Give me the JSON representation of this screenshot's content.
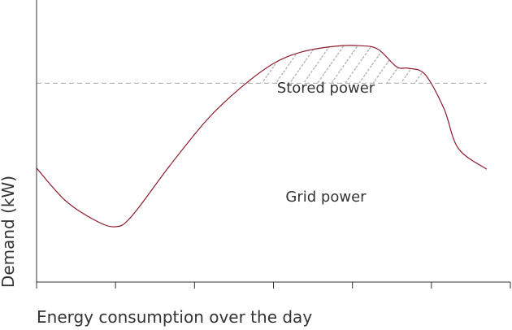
{
  "chart_data": {
    "type": "area",
    "title": "",
    "xlabel": "Energy consumption over the day",
    "ylabel": "Demand (kW)",
    "x_ticks": 6,
    "grid": false,
    "colors": {
      "curve": "#8b1a2b",
      "threshold": "#b5b5b5",
      "hatch": "#b8b8b8",
      "axis": "#333333",
      "text": "#333333"
    },
    "curve_points": [
      {
        "x": 0.0,
        "y": 0.404
      },
      {
        "x": 0.06,
        "y": 0.29
      },
      {
        "x": 0.12,
        "y": 0.222
      },
      {
        "x": 0.165,
        "y": 0.196
      },
      {
        "x": 0.2,
        "y": 0.232
      },
      {
        "x": 0.28,
        "y": 0.41
      },
      {
        "x": 0.36,
        "y": 0.576
      },
      {
        "x": 0.43,
        "y": 0.688
      },
      {
        "x": 0.5,
        "y": 0.775
      },
      {
        "x": 0.56,
        "y": 0.816
      },
      {
        "x": 0.63,
        "y": 0.836
      },
      {
        "x": 0.68,
        "y": 0.838
      },
      {
        "x": 0.72,
        "y": 0.826
      },
      {
        "x": 0.76,
        "y": 0.763
      },
      {
        "x": 0.785,
        "y": 0.758
      },
      {
        "x": 0.82,
        "y": 0.736
      },
      {
        "x": 0.86,
        "y": 0.614
      },
      {
        "x": 0.89,
        "y": 0.474
      },
      {
        "x": 0.95,
        "y": 0.4
      }
    ],
    "threshold": 0.705,
    "regions": [
      {
        "name": "stored",
        "label": "Stored power",
        "kind": "above_threshold"
      },
      {
        "name": "grid",
        "label": "Grid power",
        "kind": "below_curve"
      }
    ]
  }
}
